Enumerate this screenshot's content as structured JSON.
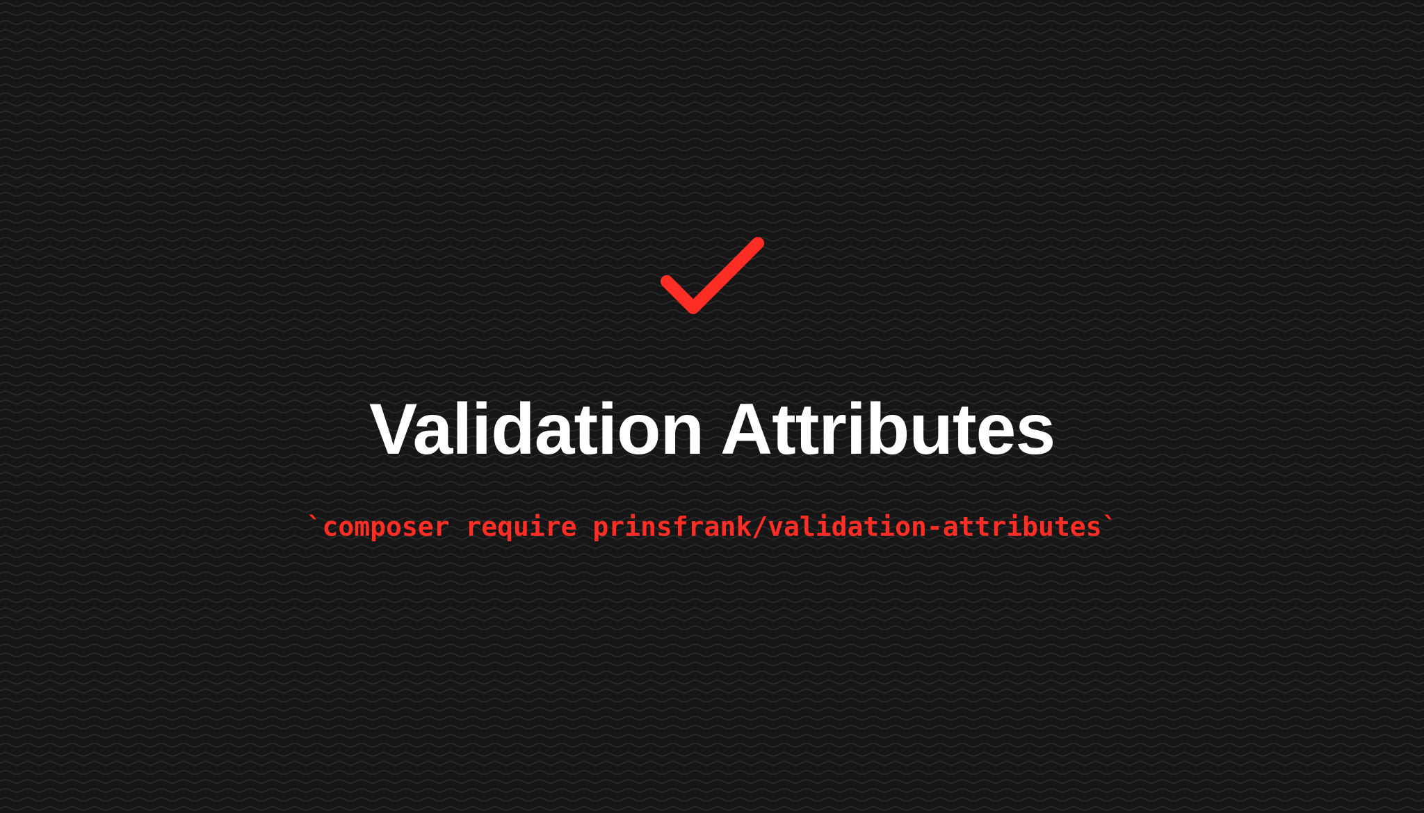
{
  "page": {
    "title": "Validation Attributes",
    "command": "`composer require prinsfrank/validation-attributes`"
  },
  "icons": {
    "hero": "checkmark-icon",
    "background": "wave-pattern"
  },
  "colors": {
    "background": "#161616",
    "wave_lines": "#2c2c2c",
    "accent": "#ff2d24",
    "title": "#ffffff"
  }
}
